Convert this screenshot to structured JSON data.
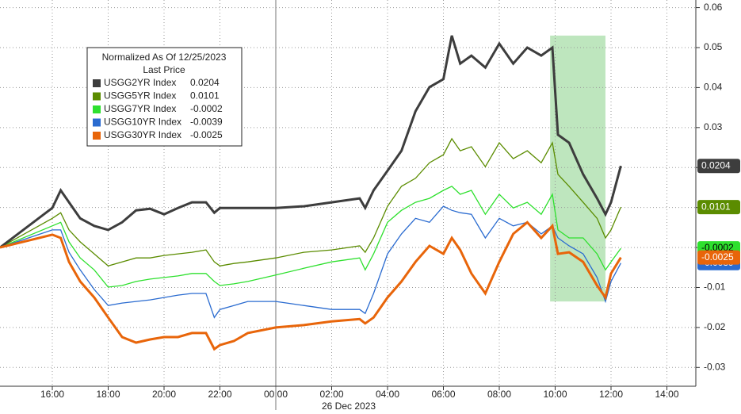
{
  "chart_data": {
    "type": "line",
    "legend_title": "Normalized As Of 12/25/2023",
    "legend_subtitle": "Last Price",
    "date_label": "26 Dec 2023",
    "day_break": 24,
    "grid": true,
    "xlim": [
      14.128,
      39.035
    ],
    "ylim": [
      -0.0347,
      0.0619
    ],
    "xticks": [
      {
        "value": 16,
        "label": "16:00"
      },
      {
        "value": 18,
        "label": "18:00"
      },
      {
        "value": 20,
        "label": "20:00"
      },
      {
        "value": 22,
        "label": "22:00"
      },
      {
        "value": 24,
        "label": "00:00"
      },
      {
        "value": 26,
        "label": "02:00"
      },
      {
        "value": 28,
        "label": "04:00"
      },
      {
        "value": 30,
        "label": "06:00"
      },
      {
        "value": 32,
        "label": "08:00"
      },
      {
        "value": 34,
        "label": "10:00"
      },
      {
        "value": 36,
        "label": "12:00"
      },
      {
        "value": 38,
        "label": "14:00"
      }
    ],
    "yticks": [
      -0.03,
      -0.02,
      -0.01,
      {
        "value": 0,
        "label": "0.00"
      },
      0.01,
      0.02,
      0.03,
      0.04,
      0.05,
      0.06
    ],
    "highlight": {
      "x": [
        33.82,
        35.8
      ],
      "y": [
        -0.0135,
        0.053
      ],
      "color": "rgba(110,200,110,0.45)"
    },
    "x": [
      14.128,
      16.0,
      16.3,
      16.6,
      17.0,
      17.5,
      18.0,
      18.5,
      19.0,
      19.5,
      20.0,
      20.5,
      21.0,
      21.5,
      21.8,
      22.0,
      22.5,
      23.0,
      24.0,
      25.0,
      26.0,
      27.0,
      27.2,
      27.5,
      28.0,
      28.5,
      29.0,
      29.5,
      30.0,
      30.3,
      30.6,
      31.0,
      31.5,
      32.0,
      32.5,
      33.0,
      33.5,
      33.9,
      34.1,
      34.5,
      35.0,
      35.5,
      35.8,
      36.0,
      36.35
    ],
    "series": [
      {
        "name": "USGG2YR Index",
        "last": 0.0204,
        "color": "#3d3d3d",
        "width": 3,
        "values": [
          0,
          0.0099,
          0.0143,
          0.0113,
          0.0073,
          0.0054,
          0.0044,
          0.0063,
          0.0093,
          0.0097,
          0.0083,
          0.0099,
          0.0113,
          0.0113,
          0.0087,
          0.0099,
          0.0099,
          0.0099,
          0.0099,
          0.0103,
          0.0113,
          0.0123,
          0.0099,
          0.0143,
          0.0192,
          0.0242,
          0.0341,
          0.0401,
          0.0421,
          0.053,
          0.046,
          0.048,
          0.045,
          0.051,
          0.046,
          0.05,
          0.048,
          0.05,
          0.0282,
          0.0262,
          0.0183,
          0.0123,
          0.0083,
          0.0113,
          0.0204
        ]
      },
      {
        "name": "USGG5YR Index",
        "last": 0.0101,
        "color": "#5b8c00",
        "width": 1.3,
        "values": [
          0,
          0.0073,
          0.0087,
          0.0044,
          0.0014,
          -0.0016,
          -0.0046,
          -0.0036,
          -0.0026,
          -0.0026,
          -0.002,
          -0.0016,
          -0.0012,
          -0.0006,
          -0.0036,
          -0.0046,
          -0.004,
          -0.0036,
          -0.0026,
          -0.0012,
          -0.0006,
          0.0004,
          -0.0012,
          0.0024,
          0.0103,
          0.0153,
          0.0173,
          0.0212,
          0.0232,
          0.0272,
          0.0242,
          0.0252,
          0.0202,
          0.0262,
          0.0222,
          0.0242,
          0.0212,
          0.0262,
          0.0183,
          0.0153,
          0.0113,
          0.0073,
          0.0024,
          0.0044,
          0.0101
        ]
      },
      {
        "name": "USGG7YR Index",
        "last": -0.0002,
        "color": "#2ee02e",
        "width": 1.3,
        "values": [
          0,
          0.0054,
          0.0063,
          0.0014,
          -0.0026,
          -0.0056,
          -0.0099,
          -0.0095,
          -0.0085,
          -0.0079,
          -0.0075,
          -0.0071,
          -0.0065,
          -0.0065,
          -0.0085,
          -0.0095,
          -0.0091,
          -0.0085,
          -0.0069,
          -0.0052,
          -0.0036,
          -0.0026,
          -0.0056,
          -0.0016,
          0.0063,
          0.0093,
          0.0113,
          0.0123,
          0.0143,
          0.0153,
          0.0133,
          0.0143,
          0.0083,
          0.0133,
          0.0099,
          0.0113,
          0.0083,
          0.0133,
          0.0044,
          0.0024,
          0.0024,
          -0.0016,
          -0.0056,
          -0.0036,
          -0.0002
        ]
      },
      {
        "name": "USGG10YR Index",
        "last": -0.0039,
        "color": "#2a6bd0",
        "width": 1.3,
        "values": [
          0,
          0.0044,
          0.0044,
          -0.0012,
          -0.0056,
          -0.0105,
          -0.0145,
          -0.0139,
          -0.0135,
          -0.0131,
          -0.0125,
          -0.0119,
          -0.0115,
          -0.0115,
          -0.0175,
          -0.0155,
          -0.0145,
          -0.0135,
          -0.0135,
          -0.0145,
          -0.0155,
          -0.0155,
          -0.0165,
          -0.0115,
          -0.0016,
          0.0034,
          0.0073,
          0.0063,
          0.0103,
          0.0093,
          0.0087,
          0.0083,
          0.0024,
          0.0073,
          0.0054,
          0.0063,
          0.0034,
          0.0054,
          0.0024,
          0.0004,
          -0.0016,
          -0.0075,
          -0.0135,
          -0.0085,
          -0.0039
        ]
      },
      {
        "name": "USGG30YR Index",
        "last": -0.0025,
        "color": "#e8650a",
        "width": 3,
        "values": [
          0,
          0.0032,
          0.0024,
          -0.0036,
          -0.0085,
          -0.0125,
          -0.0175,
          -0.0224,
          -0.0238,
          -0.023,
          -0.0224,
          -0.0224,
          -0.0214,
          -0.0214,
          -0.0254,
          -0.0244,
          -0.0234,
          -0.0214,
          -0.02,
          -0.0194,
          -0.0185,
          -0.0179,
          -0.019,
          -0.0175,
          -0.0125,
          -0.0085,
          -0.0036,
          0.0004,
          -0.0016,
          0.0024,
          -0.0006,
          -0.0065,
          -0.0115,
          -0.0036,
          0.0034,
          0.0063,
          0.0024,
          0.0054,
          -0.0016,
          -0.0012,
          -0.0036,
          -0.0095,
          -0.0125,
          -0.0065,
          -0.0025
        ]
      }
    ]
  }
}
